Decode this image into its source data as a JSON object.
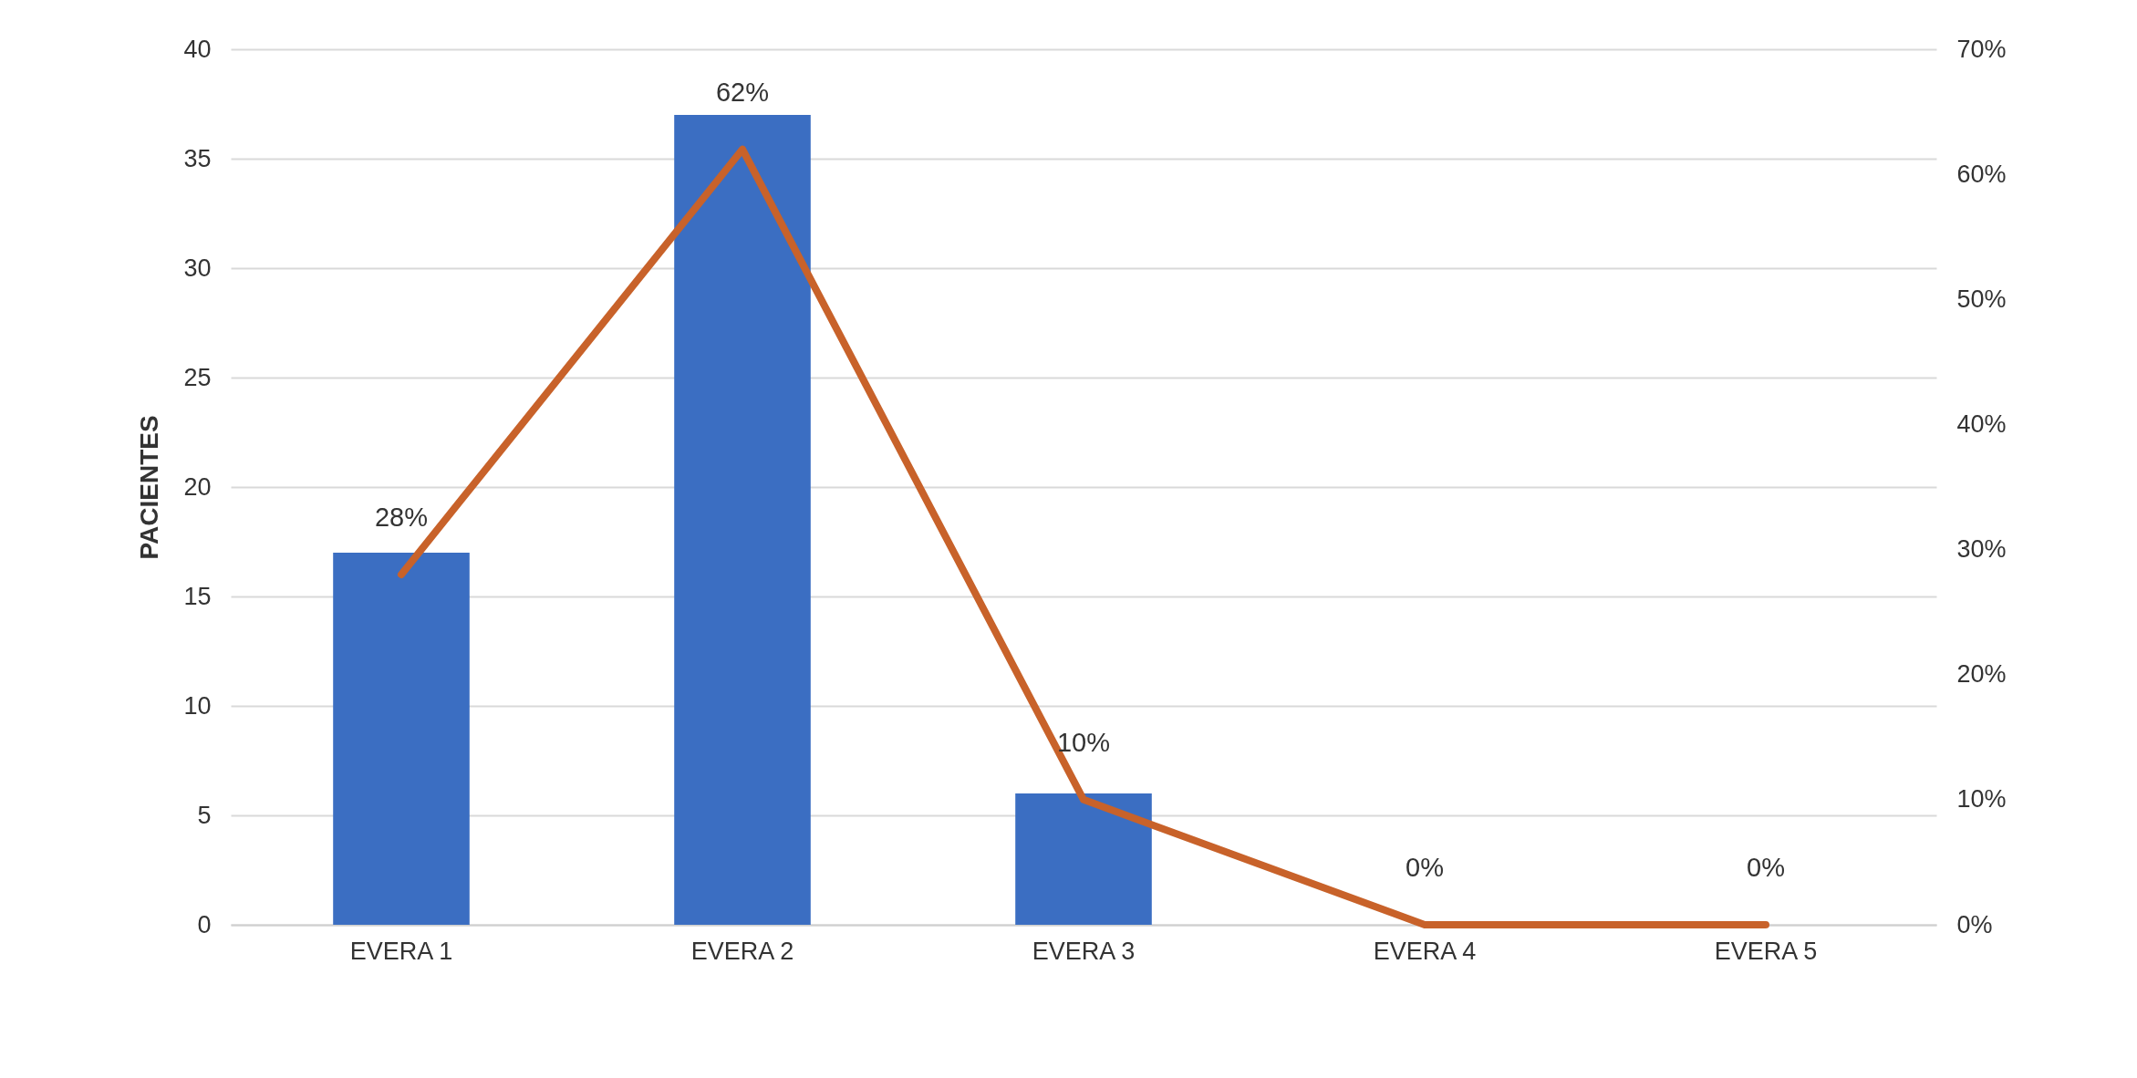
{
  "chart_data": {
    "type": "bar",
    "categories": [
      "EVERA 1",
      "EVERA 2",
      "EVERA 3",
      "EVERA 4",
      "EVERA 5"
    ],
    "ylabel": "PACIENTES",
    "ylim": [
      0,
      40
    ],
    "yticks": [
      0,
      5,
      10,
      15,
      20,
      25,
      30,
      35,
      40
    ],
    "y2lim": [
      0,
      70
    ],
    "y2ticks": [
      {
        "value": 0,
        "label": "0%"
      },
      {
        "value": 10,
        "label": "10%"
      },
      {
        "value": 20,
        "label": "20%"
      },
      {
        "value": 30,
        "label": "30%"
      },
      {
        "value": 40,
        "label": "40%"
      },
      {
        "value": 50,
        "label": "50%"
      },
      {
        "value": 60,
        "label": "60%"
      },
      {
        "value": 70,
        "label": "70%"
      }
    ],
    "grid": "y",
    "series": [
      {
        "color": "#3b6ec2",
        "values": [
          17,
          37,
          6,
          0,
          0
        ]
      },
      {
        "type": "line",
        "axis": "y2",
        "color": "#c8622a",
        "values": [
          28,
          62,
          10,
          0,
          0
        ],
        "value_labels": [
          "28%",
          "62%",
          "10%",
          "0%",
          "0%"
        ]
      }
    ]
  }
}
